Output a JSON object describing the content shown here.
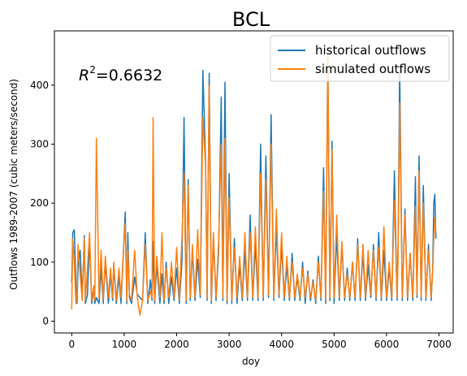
{
  "chart_data": {
    "type": "line",
    "title": "BCL",
    "xlabel": "doy",
    "ylabel": "Outflows 1989-2007 (cubic meters/second)",
    "annotation": {
      "text": "=0.6632",
      "base": "R",
      "superscript": "2"
    },
    "xlim": [
      -330,
      7270
    ],
    "ylim": [
      -20,
      492
    ],
    "xticks": [
      0,
      1000,
      2000,
      3000,
      4000,
      5000,
      6000,
      7000
    ],
    "yticks": [
      0,
      100,
      200,
      300,
      400
    ],
    "grid": false,
    "legend_position": "top-right",
    "series": [
      {
        "name": "historical outflows",
        "color": "#1f77b4",
        "x": [
          0,
          20,
          50,
          80,
          100,
          120,
          160,
          200,
          240,
          260,
          300,
          340,
          380,
          420,
          440,
          470,
          520,
          560,
          600,
          640,
          700,
          740,
          780,
          800,
          850,
          900,
          940,
          980,
          1020,
          1050,
          1070,
          1100,
          1140,
          1200,
          1250,
          1300,
          1350,
          1400,
          1450,
          1500,
          1530,
          1550,
          1580,
          1620,
          1680,
          1720,
          1760,
          1800,
          1850,
          1900,
          1950,
          2000,
          2050,
          2100,
          2140,
          2180,
          2220,
          2260,
          2300,
          2350,
          2400,
          2450,
          2500,
          2550,
          2580,
          2620,
          2660,
          2700,
          2750,
          2800,
          2850,
          2880,
          2920,
          2960,
          3000,
          3050,
          3100,
          3150,
          3200,
          3250,
          3300,
          3350,
          3400,
          3450,
          3500,
          3550,
          3600,
          3650,
          3700,
          3750,
          3800,
          3850,
          3900,
          3950,
          4000,
          4050,
          4100,
          4150,
          4200,
          4250,
          4300,
          4350,
          4400,
          4450,
          4500,
          4550,
          4600,
          4650,
          4700,
          4750,
          4800,
          4840,
          4880,
          4920,
          4960,
          5000,
          5050,
          5100,
          5150,
          5200,
          5250,
          5300,
          5350,
          5400,
          5450,
          5500,
          5550,
          5600,
          5650,
          5700,
          5750,
          5800,
          5850,
          5900,
          5950,
          6000,
          6050,
          6100,
          6150,
          6200,
          6220,
          6250,
          6300,
          6350,
          6400,
          6450,
          6500,
          6550,
          6580,
          6620,
          6660,
          6700,
          6750,
          6800,
          6850,
          6880,
          6900,
          6920,
          6940
        ],
        "y": [
          65,
          150,
          155,
          60,
          30,
          90,
          120,
          40,
          145,
          30,
          45,
          140,
          30,
          55,
          30,
          40,
          30,
          90,
          30,
          100,
          30,
          80,
          35,
          95,
          30,
          75,
          30,
          105,
          185,
          30,
          150,
          40,
          30,
          75,
          45,
          40,
          35,
          150,
          30,
          70,
          35,
          135,
          30,
          95,
          30,
          80,
          30,
          100,
          30,
          75,
          35,
          90,
          30,
          100,
          345,
          30,
          240,
          35,
          120,
          35,
          105,
          40,
          425,
          270,
          35,
          420,
          30,
          140,
          35,
          120,
          380,
          35,
          405,
          30,
          250,
          30,
          140,
          30,
          95,
          35,
          120,
          35,
          180,
          35,
          130,
          35,
          300,
          35,
          280,
          40,
          350,
          35,
          160,
          40,
          130,
          35,
          95,
          35,
          115,
          35,
          75,
          35,
          100,
          30,
          85,
          35,
          70,
          30,
          110,
          35,
          260,
          30,
          450,
          35,
          305,
          30,
          145,
          35,
          130,
          35,
          90,
          35,
          100,
          35,
          140,
          35,
          115,
          35,
          95,
          40,
          130,
          35,
          150,
          35,
          120,
          35,
          90,
          35,
          255,
          35,
          130,
          430,
          35,
          190,
          35,
          115,
          35,
          245,
          40,
          280,
          35,
          230,
          35,
          130,
          35,
          90,
          200,
          215,
          140
        ]
      },
      {
        "name": "simulated outflows",
        "color": "#ff7f0e",
        "x": [
          0,
          20,
          50,
          80,
          100,
          120,
          160,
          200,
          240,
          260,
          300,
          340,
          380,
          420,
          440,
          470,
          520,
          560,
          600,
          640,
          700,
          740,
          780,
          800,
          850,
          900,
          940,
          980,
          1020,
          1050,
          1070,
          1100,
          1140,
          1200,
          1250,
          1300,
          1350,
          1400,
          1450,
          1500,
          1530,
          1550,
          1580,
          1620,
          1680,
          1720,
          1760,
          1800,
          1850,
          1900,
          1950,
          2000,
          2050,
          2100,
          2140,
          2180,
          2220,
          2260,
          2300,
          2350,
          2400,
          2450,
          2500,
          2550,
          2580,
          2620,
          2660,
          2700,
          2750,
          2800,
          2850,
          2880,
          2920,
          2960,
          3000,
          3050,
          3100,
          3150,
          3200,
          3250,
          3300,
          3350,
          3400,
          3450,
          3500,
          3550,
          3600,
          3650,
          3700,
          3750,
          3800,
          3850,
          3900,
          3950,
          4000,
          4050,
          4100,
          4150,
          4200,
          4250,
          4300,
          4350,
          4400,
          4450,
          4500,
          4550,
          4600,
          4650,
          4700,
          4750,
          4800,
          4840,
          4880,
          4920,
          4960,
          5000,
          5050,
          5100,
          5150,
          5200,
          5250,
          5300,
          5350,
          5400,
          5450,
          5500,
          5550,
          5600,
          5650,
          5700,
          5750,
          5800,
          5850,
          5900,
          5950,
          6000,
          6050,
          6100,
          6150,
          6200,
          6220,
          6250,
          6300,
          6350,
          6400,
          6450,
          6500,
          6550,
          6580,
          6620,
          6660,
          6700,
          6750,
          6800,
          6850,
          6880,
          6900,
          6920,
          6940
        ],
        "y": [
          20,
          140,
          100,
          30,
          45,
          130,
          80,
          35,
          140,
          35,
          90,
          150,
          35,
          60,
          35,
          310,
          40,
          120,
          35,
          110,
          40,
          90,
          40,
          100,
          35,
          90,
          40,
          110,
          165,
          35,
          120,
          45,
          35,
          120,
          40,
          10,
          35,
          130,
          35,
          50,
          40,
          345,
          35,
          110,
          40,
          150,
          35,
          90,
          40,
          100,
          40,
          125,
          35,
          140,
          250,
          35,
          230,
          40,
          130,
          40,
          155,
          45,
          345,
          265,
          40,
          400,
          35,
          150,
          40,
          135,
          300,
          40,
          310,
          35,
          210,
          35,
          125,
          40,
          110,
          40,
          150,
          40,
          150,
          40,
          160,
          40,
          250,
          40,
          240,
          45,
          300,
          40,
          190,
          45,
          150,
          40,
          110,
          40,
          100,
          40,
          80,
          40,
          90,
          40,
          80,
          40,
          65,
          35,
          100,
          40,
          220,
          35,
          455,
          40,
          290,
          40,
          180,
          40,
          135,
          40,
          80,
          40,
          100,
          40,
          130,
          40,
          130,
          40,
          120,
          45,
          120,
          40,
          125,
          40,
          160,
          40,
          100,
          40,
          205,
          40,
          110,
          370,
          40,
          180,
          40,
          115,
          40,
          195,
          45,
          255,
          40,
          200,
          40,
          120,
          40,
          85,
          140,
          175,
          150
        ]
      }
    ]
  }
}
